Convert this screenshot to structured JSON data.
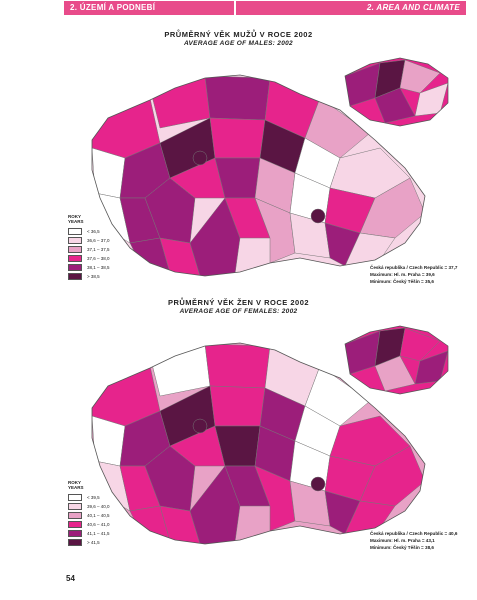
{
  "header": {
    "left": "2. ÚZEMÍ A PODNEBÍ",
    "right": "2. AREA AND CLIMATE"
  },
  "maps": [
    {
      "title": "PRŮMĚRNÝ VĚK MUŽŮ V ROCE 2002",
      "subtitle": "AVERAGE AGE OF MALES: 2002",
      "legend_title_cz": "ROKY",
      "legend_title_en": "YEARS",
      "legend": [
        {
          "label": "< 36,5",
          "color": "#ffffff"
        },
        {
          "label": "36,6 – 37,0",
          "color": "#f7d6e6"
        },
        {
          "label": "37,1 – 37,5",
          "color": "#e8a2c6"
        },
        {
          "label": "37,6 – 38,0",
          "color": "#e6248c"
        },
        {
          "label": "38,1 – 38,5",
          "color": "#9c1e7a"
        },
        {
          "label": "> 38,5",
          "color": "#5a1543"
        }
      ],
      "stats": [
        "Česká republika / Czech Republic = 37,7",
        "Maximum: Hl. m. Praha = 39,6",
        "Minimum: Český Těšín = 35,6"
      ]
    },
    {
      "title": "PRŮMĚRNÝ VĚK ŽEN V ROCE 2002",
      "subtitle": "AVERAGE AGE OF FEMALES: 2002",
      "legend_title_cz": "ROKY",
      "legend_title_en": "YEARS",
      "legend": [
        {
          "label": "< 39,5",
          "color": "#ffffff"
        },
        {
          "label": "39,6 – 40,0",
          "color": "#f7d6e6"
        },
        {
          "label": "40,1 – 40,5",
          "color": "#e8a2c6"
        },
        {
          "label": "40,6 – 41,0",
          "color": "#e6248c"
        },
        {
          "label": "41,1 – 41,5",
          "color": "#9c1e7a"
        },
        {
          "label": "> 41,5",
          "color": "#5a1543"
        }
      ],
      "stats": [
        "Česká republika / Czech Republic = 40,6",
        "Maximum: Hl. m. Praha = 43,1",
        "Minimum: Český Těšín = 38,6"
      ]
    }
  ],
  "page_number": "54"
}
